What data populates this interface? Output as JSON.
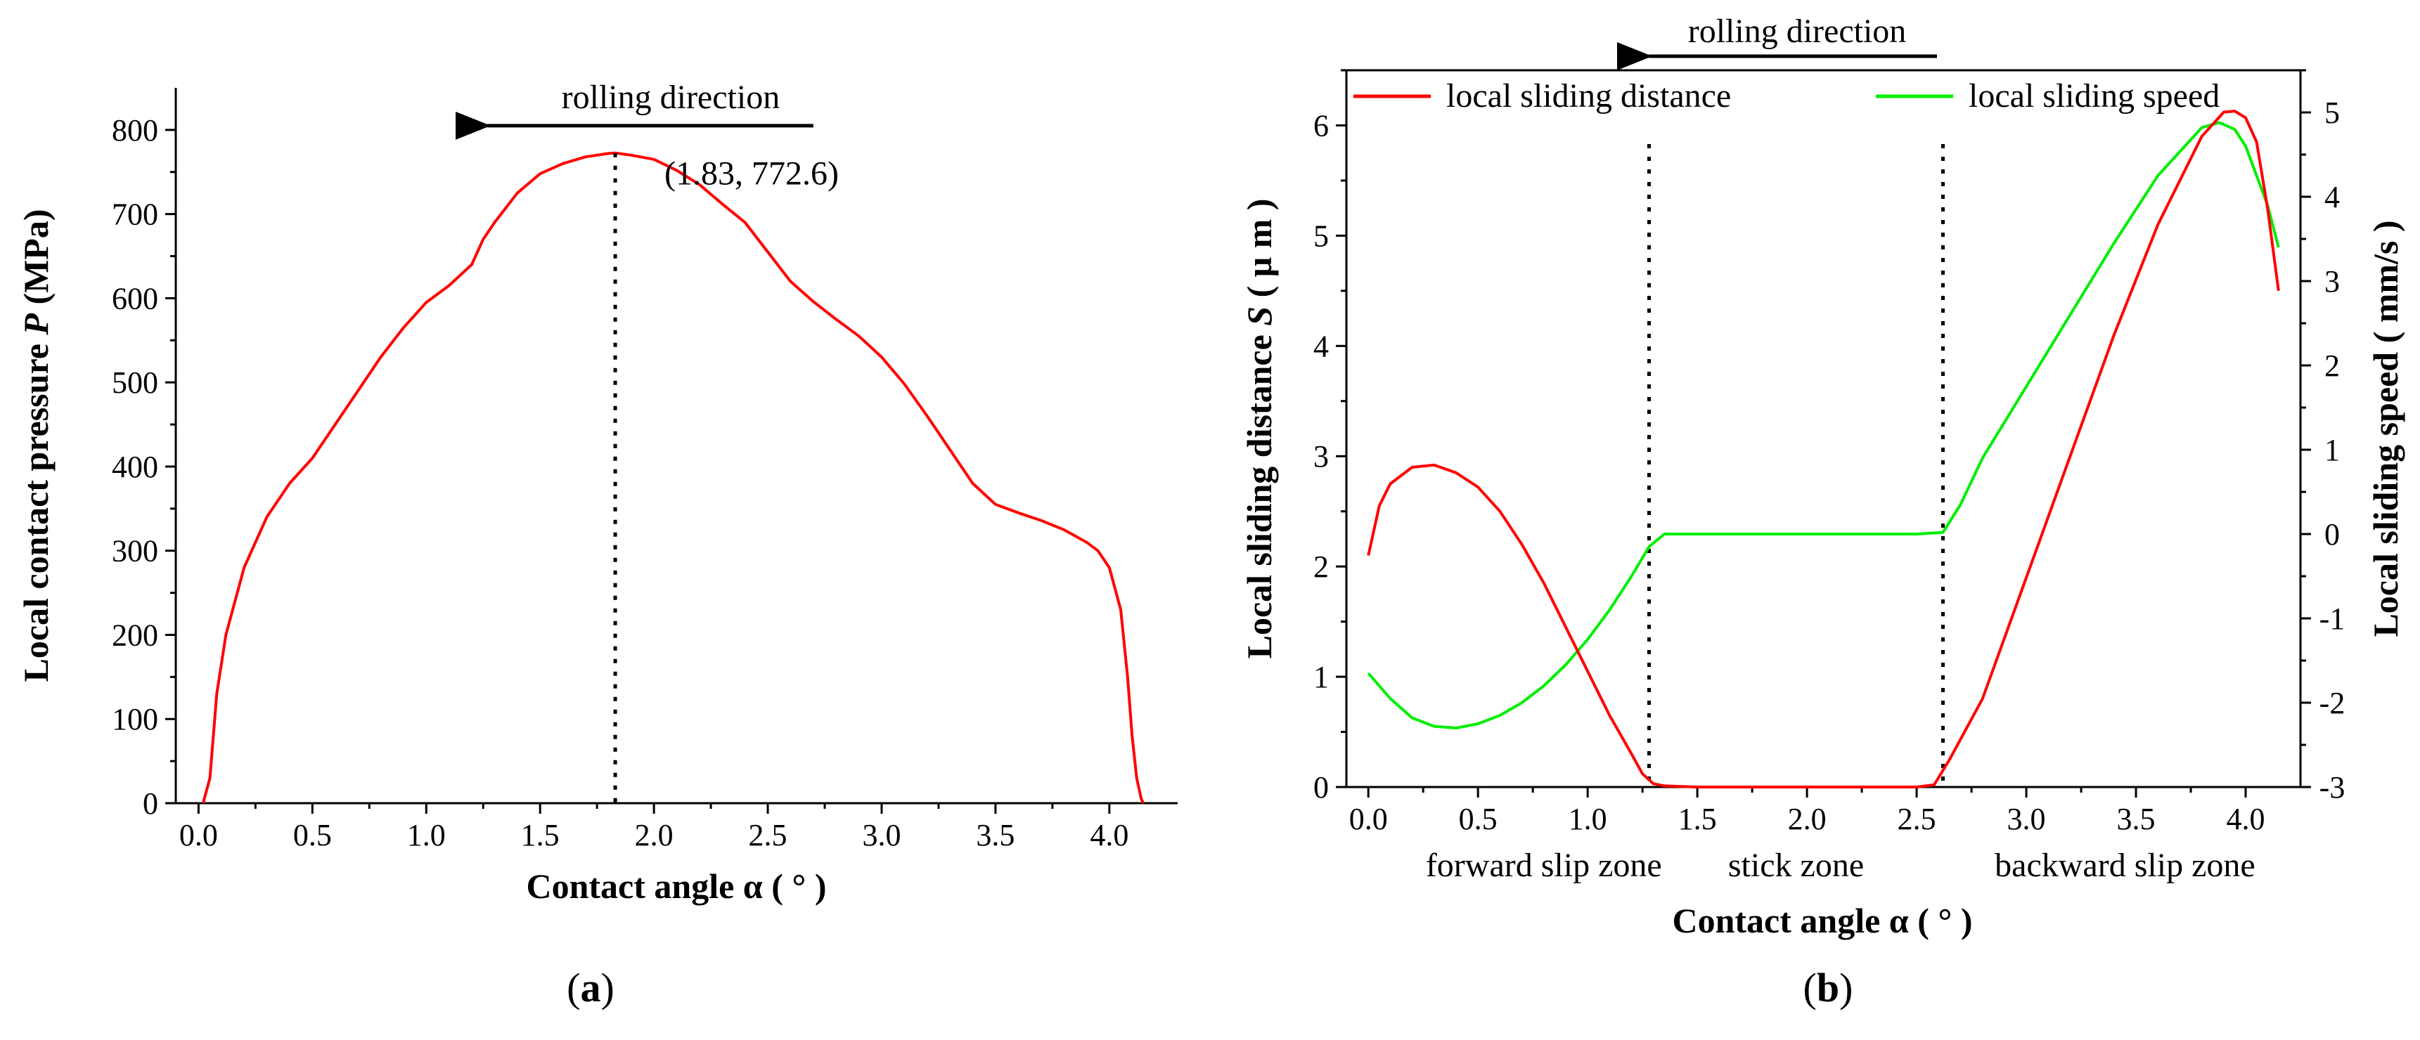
{
  "chart_data": [
    {
      "type": "line",
      "panel_label": "a",
      "title": "",
      "xlabel": "Contact angle α ( ° )",
      "ylabel_parts": [
        "Local contact pressure ",
        "P",
        " (MPa)"
      ],
      "xlim": [
        -0.1,
        4.3
      ],
      "ylim": [
        0,
        850
      ],
      "xticks": [
        0.0,
        0.5,
        1.0,
        1.5,
        2.0,
        2.5,
        3.0,
        3.5,
        4.0
      ],
      "xtick_labels": [
        "0.0",
        "0.5",
        "1.0",
        "1.5",
        "2.0",
        "2.5",
        "3.0",
        "3.5",
        "4.0"
      ],
      "yticks": [
        0,
        100,
        200,
        300,
        400,
        500,
        600,
        700,
        800
      ],
      "ytick_labels": [
        "0",
        "100",
        "200",
        "300",
        "400",
        "500",
        "600",
        "700",
        "800"
      ],
      "series": [
        {
          "name": "local contact pressure",
          "color": "#ff0000",
          "x": [
            0.02,
            0.05,
            0.08,
            0.12,
            0.2,
            0.3,
            0.4,
            0.5,
            0.6,
            0.7,
            0.8,
            0.9,
            1.0,
            1.1,
            1.2,
            1.25,
            1.3,
            1.4,
            1.5,
            1.6,
            1.7,
            1.8,
            1.83,
            1.9,
            2.0,
            2.1,
            2.2,
            2.3,
            2.4,
            2.5,
            2.6,
            2.7,
            2.8,
            2.9,
            3.0,
            3.1,
            3.2,
            3.3,
            3.4,
            3.5,
            3.6,
            3.7,
            3.8,
            3.9,
            3.95,
            4.0,
            4.05,
            4.08,
            4.1,
            4.12,
            4.14,
            4.15
          ],
          "y": [
            0,
            30,
            130,
            200,
            280,
            340,
            380,
            410,
            450,
            490,
            530,
            565,
            595,
            615,
            640,
            670,
            690,
            725,
            748,
            760,
            768,
            772,
            772.6,
            770,
            765,
            752,
            735,
            712,
            690,
            655,
            620,
            596,
            575,
            555,
            530,
            498,
            460,
            420,
            380,
            355,
            345,
            336,
            325,
            310,
            300,
            280,
            230,
            150,
            80,
            30,
            5,
            0
          ]
        }
      ],
      "annotations": {
        "peak_label": "(1.83, 772.6)",
        "peak_x": 1.83,
        "peak_y": 772.6,
        "arrow_label": "rolling direction",
        "arrow_from_x": 2.7,
        "arrow_to_x": 1.2,
        "arrow_y": 805,
        "label_y": 830
      }
    },
    {
      "type": "line",
      "panel_label": "b",
      "title": "",
      "xlabel": "Contact angle α ( ° )",
      "ylabel_parts": [
        "Local sliding distance ",
        "S",
        " ( μ m )"
      ],
      "y2label": "Local sliding speed ( mm/s )",
      "xlim": [
        -0.1,
        4.25
      ],
      "ylim": [
        0,
        6.5
      ],
      "y2lim": [
        -3,
        5.5
      ],
      "xticks": [
        0.0,
        0.5,
        1.0,
        1.5,
        2.0,
        2.5,
        3.0,
        3.5,
        4.0
      ],
      "xtick_labels": [
        "0.0",
        "0.5",
        "1.0",
        "1.5",
        "2.0",
        "2.5",
        "3.0",
        "3.5",
        "4.0"
      ],
      "yticks": [
        0,
        1,
        2,
        3,
        4,
        5,
        6
      ],
      "ytick_labels": [
        "0",
        "1",
        "2",
        "3",
        "4",
        "5",
        "6"
      ],
      "y2ticks": [
        -3,
        -2,
        -1,
        0,
        1,
        2,
        3,
        4,
        5
      ],
      "y2tick_labels": [
        "-3",
        "-2",
        "-1",
        "0",
        "1",
        "2",
        "3",
        "4",
        "5"
      ],
      "series": [
        {
          "name": "local sliding distance",
          "axis": "left",
          "color": "#ff0000",
          "x": [
            0.0,
            0.05,
            0.1,
            0.2,
            0.3,
            0.4,
            0.5,
            0.6,
            0.7,
            0.8,
            0.9,
            1.0,
            1.1,
            1.2,
            1.25,
            1.3,
            1.35,
            1.5,
            2.0,
            2.5,
            2.58,
            2.65,
            2.8,
            3.0,
            3.2,
            3.4,
            3.6,
            3.8,
            3.9,
            3.95,
            4.0,
            4.05,
            4.1,
            4.15
          ],
          "y": [
            2.1,
            2.55,
            2.75,
            2.9,
            2.92,
            2.85,
            2.72,
            2.5,
            2.2,
            1.85,
            1.45,
            1.05,
            0.65,
            0.3,
            0.12,
            0.03,
            0.01,
            0.0,
            0.0,
            0.0,
            0.02,
            0.25,
            0.8,
            1.9,
            3.0,
            4.1,
            5.1,
            5.9,
            6.12,
            6.13,
            6.07,
            5.85,
            5.25,
            4.5
          ]
        },
        {
          "name": "local sliding speed",
          "axis": "right",
          "color": "#00ee00",
          "x": [
            0.0,
            0.1,
            0.2,
            0.3,
            0.4,
            0.5,
            0.6,
            0.7,
            0.8,
            0.9,
            1.0,
            1.1,
            1.2,
            1.28,
            1.35,
            1.5,
            2.0,
            2.5,
            2.62,
            2.7,
            2.8,
            3.0,
            3.2,
            3.4,
            3.6,
            3.8,
            3.88,
            3.95,
            4.0,
            4.05,
            4.1,
            4.15
          ],
          "y": [
            -1.65,
            -1.95,
            -2.18,
            -2.28,
            -2.3,
            -2.25,
            -2.15,
            -2.0,
            -1.8,
            -1.55,
            -1.25,
            -0.9,
            -0.5,
            -0.15,
            0.0,
            0.0,
            0.0,
            0.0,
            0.02,
            0.35,
            0.9,
            1.75,
            2.6,
            3.45,
            4.25,
            4.82,
            4.88,
            4.8,
            4.6,
            4.25,
            3.9,
            3.4
          ]
        }
      ],
      "legend": {
        "distance_label": "local sliding distance",
        "speed_label": "local sliding speed"
      },
      "annotations": {
        "arrow_label": "rolling direction",
        "dividers_x": [
          1.28,
          2.62
        ],
        "zones": [
          {
            "label": "forward slip zone",
            "x": 0.8
          },
          {
            "label": "stick zone",
            "x": 1.95
          },
          {
            "label": "backward slip zone",
            "x": 3.45
          }
        ]
      }
    }
  ]
}
